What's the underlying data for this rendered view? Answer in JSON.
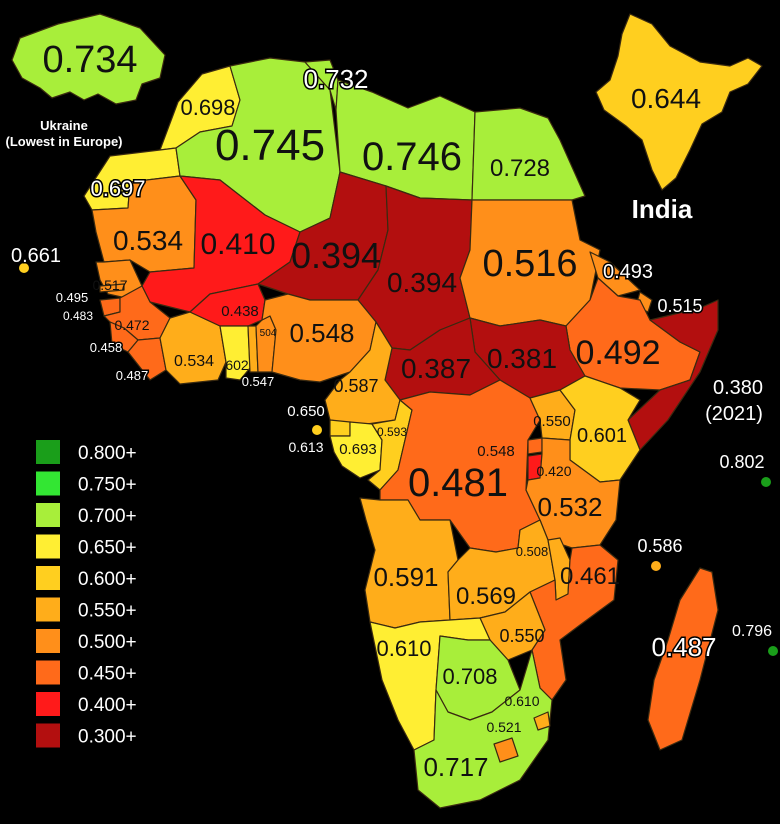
{
  "colors": {
    "c800": "#1a9e1a",
    "c750": "#33e633",
    "c700": "#a8ee3a",
    "c650": "#ffee33",
    "c600": "#ffcf1f",
    "c550": "#ffad1a",
    "c500": "#ff8f1a",
    "c450": "#ff6a1a",
    "c400": "#ff1a1a",
    "c300": "#b30f0f",
    "border": "#3a2a10"
  },
  "labels": {
    "ukraine_value": "0.734",
    "ukraine_caption_line1": "Ukraine",
    "ukraine_caption_line2": "(Lowest in Europe)",
    "india_value": "0.644",
    "india_caption": "India",
    "somalia_value": "0.380",
    "somalia_year": "(2021)"
  },
  "regions": [
    {
      "id": "morocco",
      "value": "0.698"
    },
    {
      "id": "algeria",
      "value": "0.745"
    },
    {
      "id": "tunisia",
      "value": "0.732"
    },
    {
      "id": "libya",
      "value": "0.746"
    },
    {
      "id": "egypt",
      "value": "0.728"
    },
    {
      "id": "western-sahara",
      "value": "0.697"
    },
    {
      "id": "mauritania",
      "value": "0.534"
    },
    {
      "id": "mali",
      "value": "0.410"
    },
    {
      "id": "niger",
      "value": "0.394"
    },
    {
      "id": "chad",
      "value": "0.394"
    },
    {
      "id": "sudan",
      "value": "0.516"
    },
    {
      "id": "eritrea",
      "value": "0.493"
    },
    {
      "id": "djibouti",
      "value": "0.515"
    },
    {
      "id": "ethiopia",
      "value": "0.492"
    },
    {
      "id": "south-sudan",
      "value": "0.381"
    },
    {
      "id": "car",
      "value": "0.387"
    },
    {
      "id": "cape-verde",
      "value": "0.661"
    },
    {
      "id": "senegal",
      "value": "0.517"
    },
    {
      "id": "gambia",
      "value": "0.495"
    },
    {
      "id": "guinea-bissau",
      "value": "0.483"
    },
    {
      "id": "guinea",
      "value": "0.472"
    },
    {
      "id": "sierra-leone",
      "value": "0.458"
    },
    {
      "id": "liberia",
      "value": "0.487"
    },
    {
      "id": "burkina-faso",
      "value": "0.438"
    },
    {
      "id": "cote-divoire",
      "value": "0.534"
    },
    {
      "id": "ghana",
      "value": "602"
    },
    {
      "id": "togo",
      "value": "0.547"
    },
    {
      "id": "benin",
      "value": "504"
    },
    {
      "id": "nigeria",
      "value": "0.548"
    },
    {
      "id": "cameroon",
      "value": "0.587"
    },
    {
      "id": "equatorial-guinea",
      "value": "0.650"
    },
    {
      "id": "sao-tome",
      "value": "0.613"
    },
    {
      "id": "gabon",
      "value": "0.693"
    },
    {
      "id": "congo",
      "value": "0.593"
    },
    {
      "id": "drc",
      "value": "0.481"
    },
    {
      "id": "uganda",
      "value": "0.550"
    },
    {
      "id": "kenya",
      "value": "0.601"
    },
    {
      "id": "rwanda",
      "value": "0.548"
    },
    {
      "id": "burundi",
      "value": "0.420"
    },
    {
      "id": "tanzania",
      "value": "0.532"
    },
    {
      "id": "seychelles",
      "value": "0.802"
    },
    {
      "id": "comoros",
      "value": "0.586"
    },
    {
      "id": "angola",
      "value": "0.591"
    },
    {
      "id": "zambia",
      "value": "0.569"
    },
    {
      "id": "malawi",
      "value": "0.508"
    },
    {
      "id": "mozambique",
      "value": "0.461"
    },
    {
      "id": "zimbabwe",
      "value": "0.550"
    },
    {
      "id": "madagascar",
      "value": "0.487"
    },
    {
      "id": "mauritius",
      "value": "0.796"
    },
    {
      "id": "namibia",
      "value": "0.610"
    },
    {
      "id": "botswana",
      "value": "0.708"
    },
    {
      "id": "eswatini",
      "value": "0.610"
    },
    {
      "id": "lesotho",
      "value": "0.521"
    },
    {
      "id": "south-africa",
      "value": "0.717"
    }
  ],
  "legend": [
    {
      "label": "0.800+",
      "color": "#1a9e1a"
    },
    {
      "label": "0.750+",
      "color": "#33e633"
    },
    {
      "label": "0.700+",
      "color": "#a8ee3a"
    },
    {
      "label": "0.650+",
      "color": "#ffee33"
    },
    {
      "label": "0.600+",
      "color": "#ffcf1f"
    },
    {
      "label": "0.550+",
      "color": "#ffad1a"
    },
    {
      "label": "0.500+",
      "color": "#ff8f1a"
    },
    {
      "label": "0.450+",
      "color": "#ff6a1a"
    },
    {
      "label": "0.400+",
      "color": "#ff1a1a"
    },
    {
      "label": "0.300+",
      "color": "#b30f0f"
    }
  ]
}
